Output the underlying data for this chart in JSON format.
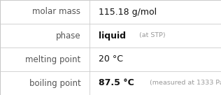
{
  "rows": [
    {
      "label": "molar mass",
      "value": "115.18 g/mol",
      "extra": null,
      "value_bold": false
    },
    {
      "label": "phase",
      "value": "liquid",
      "extra": "(at STP)",
      "value_bold": true
    },
    {
      "label": "melting point",
      "value": "20 °C",
      "extra": null,
      "value_bold": false
    },
    {
      "label": "boiling point",
      "value": "87.5 °C",
      "extra": "(measured at 1333 Pa)",
      "value_bold": true
    }
  ],
  "background_color": "#ffffff",
  "border_color": "#bbbbbb",
  "text_color_label": "#555555",
  "text_color_value": "#111111",
  "text_color_extra": "#999999",
  "divider_color": "#cccccc",
  "col_split": 0.405,
  "label_fontsize": 8.5,
  "value_fontsize": 9.0,
  "extra_fontsize": 6.8,
  "fig_width": 3.16,
  "fig_height": 1.36,
  "dpi": 100
}
